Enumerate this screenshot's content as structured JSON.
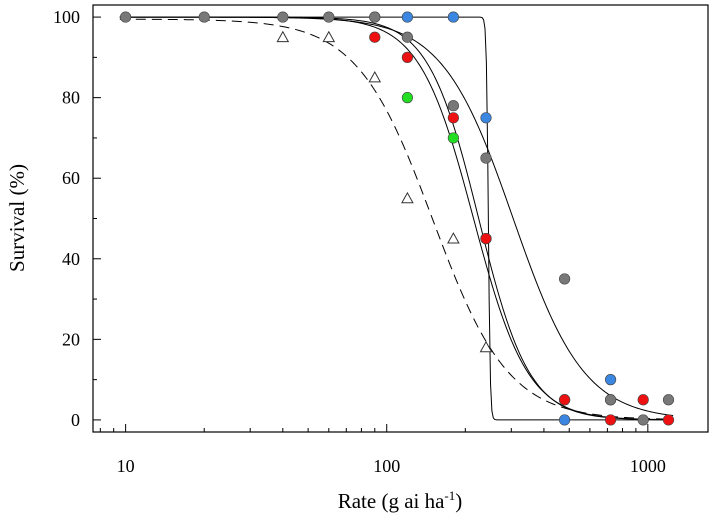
{
  "chart_data": {
    "type": "scatter",
    "title": "",
    "xlabel": "Rate (g ai ha",
    "xlabel_sup": "-1",
    "xlabel_close": ")",
    "ylabel": "Survival (%)",
    "xscale": "log",
    "xlim": [
      7.5,
      1700
    ],
    "ylim": [
      -3,
      103
    ],
    "x_ticks": [
      10,
      100,
      1000
    ],
    "x_tick_labels": [
      "10",
      "100",
      "1000"
    ],
    "y_ticks": [
      0,
      20,
      40,
      60,
      80,
      100
    ],
    "y_tick_labels": [
      "0",
      "20",
      "40",
      "60",
      "80",
      "100"
    ],
    "grid": false,
    "legend": "none",
    "series": [
      {
        "marker": "triangle-open",
        "color": "#ffffff",
        "x": [
          40,
          60,
          90,
          120,
          180,
          240
        ],
        "y": [
          95,
          95,
          85,
          55,
          45,
          18
        ],
        "curve": {
          "style": "dashed",
          "top": 99.5,
          "bottom": 0,
          "ed50": 150,
          "slope": 3
        }
      },
      {
        "marker": "circle",
        "color": "#3a86e0",
        "x": [
          90,
          120,
          180,
          240,
          480,
          720
        ],
        "y": [
          100,
          100,
          100,
          75,
          0,
          10
        ],
        "curve": {
          "style": "solid",
          "top": 100,
          "bottom": 0,
          "ed50": 245,
          "slope": 120
        }
      },
      {
        "marker": "circle",
        "color": "#22dd22",
        "x": [
          120,
          180,
          240,
          480,
          720
        ],
        "y": [
          80,
          70,
          45,
          5,
          5
        ],
        "curve": {
          "style": "solid",
          "top": 100,
          "bottom": 0,
          "ed50": 225,
          "slope": 4.5
        }
      },
      {
        "marker": "circle",
        "color": "#ee1111",
        "x": [
          90,
          120,
          180,
          240,
          480,
          720,
          960,
          1200
        ],
        "y": [
          95,
          90,
          75,
          45,
          5,
          0,
          5,
          0
        ],
        "curve": {
          "style": "solid",
          "top": 100,
          "bottom": 0,
          "ed50": 215,
          "slope": 4.2
        }
      },
      {
        "marker": "circle",
        "color": "#787878",
        "x": [
          10,
          20,
          40,
          60,
          90,
          120,
          180,
          240,
          480,
          720,
          960,
          1200
        ],
        "y": [
          100,
          100,
          100,
          100,
          100,
          95,
          78,
          65,
          35,
          5,
          0,
          5
        ],
        "curve": {
          "style": "solid",
          "top": 100,
          "bottom": 0,
          "ed50": 305,
          "slope": 3.2
        }
      }
    ]
  }
}
